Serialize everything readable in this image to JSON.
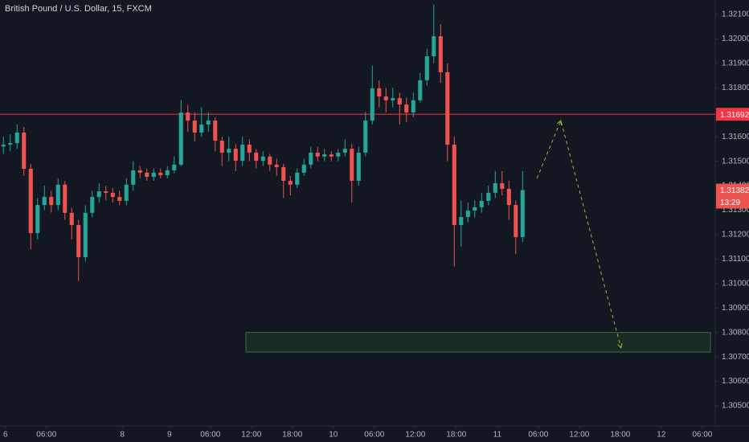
{
  "chart_data": {
    "type": "candlestick",
    "title": "British Pound / U.S. Dollar, 15, FXCM",
    "x": [
      0.5,
      1.5,
      2.5,
      3.5,
      4.5,
      5.5,
      6.5,
      7.5,
      8.5,
      9.5,
      10.5,
      11.5,
      12.5,
      13.5,
      14.5,
      15.5,
      16.5,
      17.5,
      18.5,
      19.5,
      20.5,
      21.5,
      22.5,
      23.5,
      24.5,
      25.5,
      26.5,
      27.5,
      28.5,
      29.5,
      30.5,
      31.5,
      32.5,
      33.5,
      34.5,
      35.5,
      36.5,
      37.5,
      38.5,
      39.5,
      40.5,
      41.5,
      42.5,
      43.5,
      44.5,
      45.5,
      46.5,
      47.5,
      48.5,
      49.5,
      50.5,
      51.5,
      52.5,
      53.5,
      54.5,
      55.5,
      56.5,
      57.5,
      58.5,
      59.5,
      60.5,
      61.5,
      62.5,
      63.5,
      64.5,
      65.5,
      66.5,
      67.5,
      68.5,
      69.5,
      70.5,
      71.5,
      72.5,
      73.5,
      74.5,
      75.5,
      76.5
    ],
    "open": [
      1.3156,
      1.31568,
      1.31574,
      1.31617,
      1.31469,
      1.31206,
      1.31321,
      1.31354,
      1.31321,
      1.31404,
      1.31289,
      1.31239,
      1.31108,
      1.31289,
      1.31354,
      1.31377,
      1.31371,
      1.31354,
      1.31338,
      1.31404,
      1.31463,
      1.31453,
      1.31436,
      1.31453,
      1.31443,
      1.31463,
      1.31486,
      1.31699,
      1.31666,
      1.31617,
      1.3165,
      1.31666,
      1.31584,
      1.31535,
      1.31551,
      1.31502,
      1.31568,
      1.31535,
      1.31502,
      1.31519,
      1.31486,
      1.31476,
      1.3142,
      1.31404,
      1.31453,
      1.31486,
      1.31535,
      1.31519,
      1.31528,
      1.31519,
      1.31535,
      1.31551,
      1.3142,
      1.31535,
      1.31666,
      1.31798,
      1.31765,
      1.31749,
      1.31758,
      1.31732,
      1.31699,
      1.31749,
      1.31831,
      1.31929,
      1.32011,
      1.31864,
      1.31568,
      1.31239,
      1.31272,
      1.31298,
      1.31312,
      1.31338,
      1.31371,
      1.3141,
      1.31387,
      1.31321,
      1.3119
    ],
    "high": [
      1.316,
      1.3161,
      1.3165,
      1.3164,
      1.3149,
      1.3135,
      1.314,
      1.3138,
      1.3143,
      1.3142,
      1.3131,
      1.3126,
      1.3132,
      1.3138,
      1.3141,
      1.314,
      1.3139,
      1.3138,
      1.3143,
      1.315,
      1.3148,
      1.3147,
      1.3147,
      1.3147,
      1.3148,
      1.3152,
      1.3175,
      1.3173,
      1.317,
      1.3172,
      1.317,
      1.3168,
      1.316,
      1.316,
      1.3157,
      1.316,
      1.3159,
      1.3155,
      1.3154,
      1.3153,
      1.3151,
      1.3149,
      1.3144,
      1.3147,
      1.3151,
      1.3156,
      1.3156,
      1.3155,
      1.3154,
      1.3155,
      1.3159,
      1.3157,
      1.3156,
      1.317,
      1.3189,
      1.3183,
      1.318,
      1.318,
      1.3178,
      1.3176,
      1.3178,
      1.3186,
      1.3196,
      1.3214,
      1.3206,
      1.319,
      1.316,
      1.3134,
      1.3133,
      1.3134,
      1.3137,
      1.314,
      1.3146,
      1.3146,
      1.3142,
      1.3134,
      1.3146
    ],
    "low": [
      1.3153,
      1.3154,
      1.3155,
      1.3144,
      1.3114,
      1.3118,
      1.313,
      1.3129,
      1.313,
      1.3126,
      1.3118,
      1.3101,
      1.3109,
      1.3127,
      1.3133,
      1.3134,
      1.3133,
      1.3132,
      1.3132,
      1.3138,
      1.3143,
      1.3142,
      1.3142,
      1.3143,
      1.3143,
      1.3145,
      1.3148,
      1.3162,
      1.3158,
      1.316,
      1.3162,
      1.3154,
      1.3148,
      1.315,
      1.3146,
      1.3148,
      1.315,
      1.3147,
      1.3148,
      1.3146,
      1.3144,
      1.3135,
      1.3136,
      1.3139,
      1.3144,
      1.3147,
      1.315,
      1.315,
      1.315,
      1.315,
      1.3152,
      1.3133,
      1.314,
      1.3152,
      1.3165,
      1.3172,
      1.317,
      1.3172,
      1.3165,
      1.3166,
      1.3168,
      1.3174,
      1.3181,
      1.319,
      1.3182,
      1.315,
      1.3107,
      1.3115,
      1.3125,
      1.3127,
      1.3129,
      1.3132,
      1.3135,
      1.3136,
      1.3126,
      1.3112,
      1.3117
    ],
    "close": [
      1.31568,
      1.31574,
      1.31617,
      1.31469,
      1.31206,
      1.31321,
      1.31354,
      1.31321,
      1.31404,
      1.31289,
      1.31239,
      1.31108,
      1.31289,
      1.31354,
      1.31377,
      1.31371,
      1.31354,
      1.31338,
      1.31404,
      1.31463,
      1.31453,
      1.31436,
      1.31453,
      1.31443,
      1.31463,
      1.31486,
      1.31699,
      1.31666,
      1.31617,
      1.3165,
      1.31666,
      1.31584,
      1.31535,
      1.31551,
      1.31502,
      1.31568,
      1.31535,
      1.31502,
      1.31519,
      1.31486,
      1.31476,
      1.3142,
      1.31404,
      1.31453,
      1.31486,
      1.31535,
      1.31519,
      1.31528,
      1.31519,
      1.31535,
      1.31551,
      1.3142,
      1.31535,
      1.31666,
      1.31798,
      1.31765,
      1.31749,
      1.31758,
      1.31732,
      1.31699,
      1.31749,
      1.31831,
      1.31929,
      1.32011,
      1.31864,
      1.31568,
      1.31239,
      1.31272,
      1.31298,
      1.31312,
      1.31338,
      1.31371,
      1.3141,
      1.31387,
      1.31321,
      1.3119,
      1.31382
    ],
    "up_color": "#26a69a",
    "down_color": "#ef5350",
    "xlim": [
      0,
      104.7
    ],
    "ylim": [
      1.30418,
      1.32159
    ],
    "xticks": [
      {
        "value": 0.8,
        "label": "6"
      },
      {
        "value": 6.8,
        "label": "06:00"
      },
      {
        "value": 17.9,
        "label": "8"
      },
      {
        "value": 24.8,
        "label": "9"
      },
      {
        "value": 30.8,
        "label": "06:00"
      },
      {
        "value": 36.8,
        "label": "12:00"
      },
      {
        "value": 42.8,
        "label": "18:00"
      },
      {
        "value": 48.8,
        "label": "10"
      },
      {
        "value": 54.8,
        "label": "06:00"
      },
      {
        "value": 60.8,
        "label": "12:00"
      },
      {
        "value": 66.8,
        "label": "18:00"
      },
      {
        "value": 72.8,
        "label": "11"
      },
      {
        "value": 78.8,
        "label": "06:00"
      },
      {
        "value": 84.8,
        "label": "12:00"
      },
      {
        "value": 90.8,
        "label": "18:00"
      },
      {
        "value": 96.8,
        "label": "12"
      },
      {
        "value": 102.8,
        "label": "06:00"
      }
    ],
    "yticks": [
      {
        "value": 1.305,
        "label": "1.30500"
      },
      {
        "value": 1.306,
        "label": "1.30600"
      },
      {
        "value": 1.307,
        "label": "1.30700"
      },
      {
        "value": 1.308,
        "label": "1.30800"
      },
      {
        "value": 1.309,
        "label": "1.30900"
      },
      {
        "value": 1.31,
        "label": "1.31000"
      },
      {
        "value": 1.311,
        "label": "1.31100"
      },
      {
        "value": 1.312,
        "label": "1.31200"
      },
      {
        "value": 1.313,
        "label": "1.31300"
      },
      {
        "value": 1.314,
        "label": "1.31400"
      },
      {
        "value": 1.315,
        "label": "1.31500"
      },
      {
        "value": 1.316,
        "label": "1.31600"
      },
      {
        "value": 1.317,
        "label": "1.31700"
      },
      {
        "value": 1.318,
        "label": "1.31800"
      },
      {
        "value": 1.319,
        "label": "1.31900"
      },
      {
        "value": 1.32,
        "label": "1.32000"
      },
      {
        "value": 1.321,
        "label": "1.32100"
      }
    ],
    "hline": {
      "value": 1.31692,
      "color": "#f23645"
    },
    "countdown": "13:29",
    "zone": {
      "x": [
        36,
        104
      ],
      "y": [
        1.3072,
        1.308
      ],
      "color": "#1e3a26"
    },
    "forecast": {
      "x": [
        78.6,
        82.1,
        90.9
      ],
      "y": [
        1.3143,
        1.31666,
        1.30737
      ],
      "color": "#a8b43c"
    }
  }
}
